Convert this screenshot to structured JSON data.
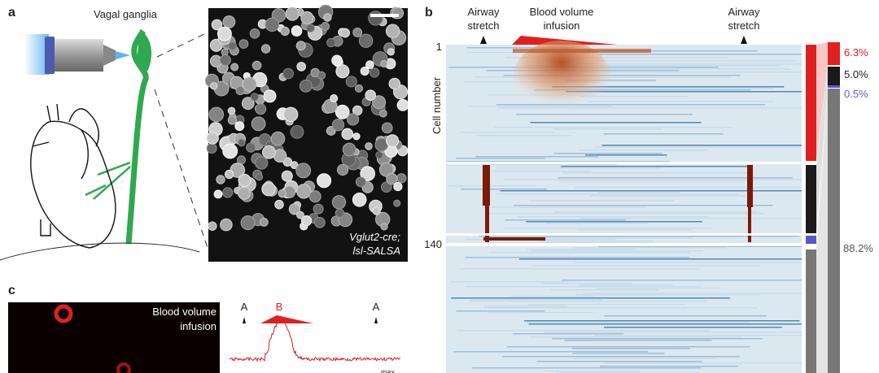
{
  "panel_a": {
    "label": "a",
    "ganglia_label": "Vagal ganglia",
    "image_caption": [
      "Vglut2-cre;",
      "lsl-SALSA"
    ]
  },
  "panel_b": {
    "label": "b",
    "stimuli": [
      [
        "Airway",
        "stretch"
      ],
      [
        "Blood volume",
        "infusion"
      ],
      [
        "Airway",
        "stretch"
      ]
    ],
    "y_axis_label": "Cell number",
    "row_labels": [
      "1",
      "140"
    ],
    "fractions": [
      "6.3%",
      "5.0%",
      "0.5%",
      "88.2%"
    ]
  },
  "panel_c": {
    "label": "c",
    "image_caption": [
      "Blood volume",
      "infusion"
    ],
    "trace_markers": [
      "A",
      "B",
      "A"
    ],
    "trace_scale_label": "max"
  }
}
